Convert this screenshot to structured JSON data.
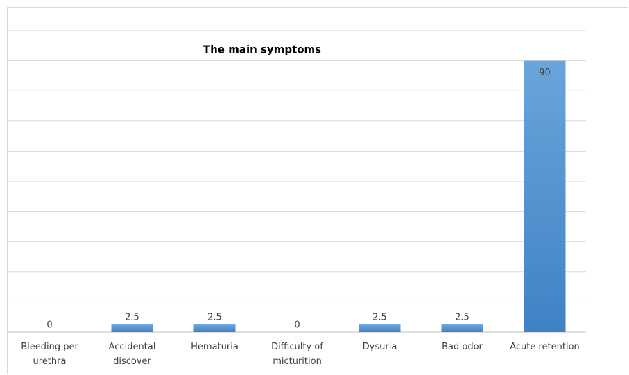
{
  "chart_data": {
    "type": "bar",
    "title": "The main  symptoms",
    "categories": [
      "Bleeding per urethra",
      "Accidental discover",
      "Hematuria",
      "Difficulty of micturition",
      "Dysuria",
      "Bad odor",
      "Acute retention"
    ],
    "values": [
      0,
      2.5,
      2.5,
      0,
      2.5,
      2.5,
      90
    ],
    "color": "#5b9bd5",
    "ylim": [
      0,
      100
    ],
    "yticks": [
      0,
      10,
      20,
      30,
      40,
      50,
      60,
      70,
      80,
      90,
      100
    ],
    "grid": true,
    "ytick_labels": false
  }
}
